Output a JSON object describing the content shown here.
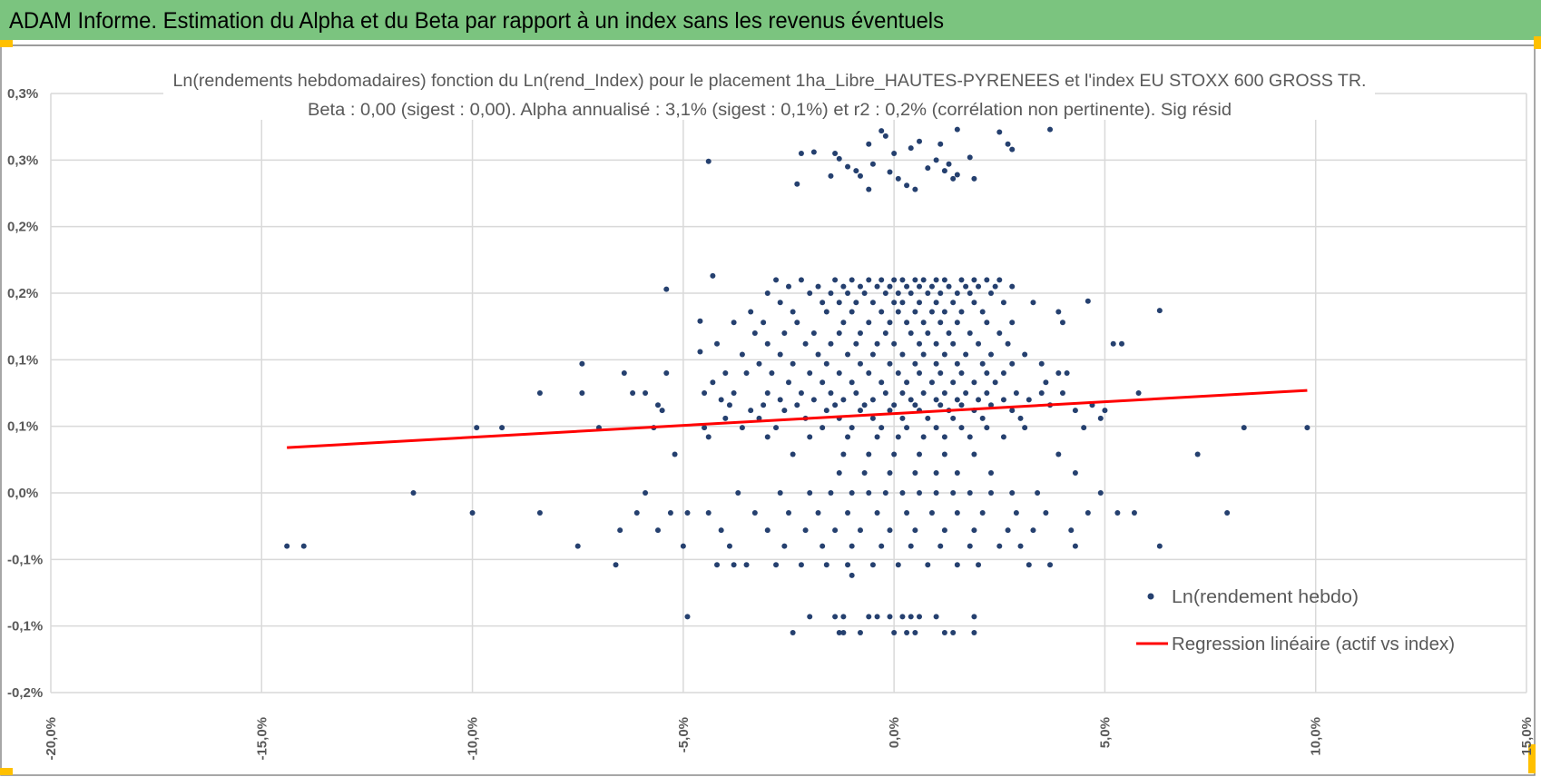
{
  "header": {
    "title": "ADAM Informe. Estimation du Alpha et du Beta par rapport à un index sans les revenus éventuels"
  },
  "colors": {
    "header_bg": "#7BC47F",
    "points": "#25406F",
    "regression": "#FF0000",
    "handle": "#FFC000"
  },
  "chart_data": {
    "type": "scatter",
    "title": "Ln(rendements hebdomadaires) fonction du Ln(rend_Index) pour le placement 1ha_Libre_HAUTES-PYRENEES et l'index EU STOXX 600 GROSS TR.",
    "subtitle": "Beta : 0,00 (sigest : 0,00). Alpha annualisé : 3,1% (sigest : 0,1%) et r2 : 0,2% (corrélation non pertinente). Sig résid",
    "xlabel": "",
    "ylabel": "",
    "xlim": [
      -20,
      15
    ],
    "ylim": [
      -0.15,
      0.3
    ],
    "grid": true,
    "legend_position": "bottom-right",
    "x_ticks": [
      {
        "v": -20,
        "label": "-20,0%"
      },
      {
        "v": -15,
        "label": "-15,0%"
      },
      {
        "v": -10,
        "label": "-10,0%"
      },
      {
        "v": -5,
        "label": "-5,0%"
      },
      {
        "v": 0,
        "label": "0,0%"
      },
      {
        "v": 5,
        "label": "5,0%"
      },
      {
        "v": 10,
        "label": "10,0%"
      },
      {
        "v": 15,
        "label": "15,0%"
      }
    ],
    "y_ticks": [
      {
        "v": 0.3,
        "label": "0,3%"
      },
      {
        "v": 0.25,
        "label": "0,3%"
      },
      {
        "v": 0.2,
        "label": "0,2%"
      },
      {
        "v": 0.15,
        "label": "0,2%"
      },
      {
        "v": 0.1,
        "label": "0,1%"
      },
      {
        "v": 0.05,
        "label": "0,1%"
      },
      {
        "v": 0.0,
        "label": "0,0%"
      },
      {
        "v": -0.05,
        "label": "-0,1%"
      },
      {
        "v": -0.1,
        "label": "-0,1%"
      },
      {
        "v": -0.15,
        "label": "-0,2%"
      }
    ],
    "series": [
      {
        "name": "Ln(rendement hebdo)",
        "kind": "scatter",
        "points": [
          [
            -2.3,
            0.232
          ],
          [
            -2.2,
            0.255
          ],
          [
            -1.9,
            0.256
          ],
          [
            -1.5,
            0.238
          ],
          [
            -1.4,
            0.255
          ],
          [
            -1.3,
            0.251
          ],
          [
            -1.1,
            0.245
          ],
          [
            -0.9,
            0.242
          ],
          [
            -0.8,
            0.238
          ],
          [
            -0.6,
            0.262
          ],
          [
            -0.5,
            0.247
          ],
          [
            -0.3,
            0.272
          ],
          [
            -0.2,
            0.268
          ],
          [
            -0.1,
            0.241
          ],
          [
            0.0,
            0.255
          ],
          [
            0.1,
            0.236
          ],
          [
            0.3,
            0.231
          ],
          [
            0.4,
            0.259
          ],
          [
            0.5,
            0.228
          ],
          [
            0.6,
            0.264
          ],
          [
            0.8,
            0.244
          ],
          [
            1.0,
            0.25
          ],
          [
            1.1,
            0.262
          ],
          [
            1.2,
            0.242
          ],
          [
            1.3,
            0.247
          ],
          [
            1.4,
            0.236
          ],
          [
            1.5,
            0.239
          ],
          [
            1.8,
            0.252
          ],
          [
            1.9,
            0.236
          ],
          [
            2.5,
            0.271
          ],
          [
            2.7,
            0.262
          ],
          [
            2.8,
            0.258
          ],
          [
            3.7,
            0.273
          ],
          [
            -4.4,
            0.249
          ],
          [
            1.5,
            0.273
          ],
          [
            -0.6,
            0.228
          ],
          [
            -5.4,
            0.153
          ],
          [
            -4.3,
            0.163
          ],
          [
            -4.6,
            0.129
          ],
          [
            -4.6,
            0.106
          ],
          [
            6.3,
            0.137
          ],
          [
            4.6,
            0.144
          ],
          [
            -1.0,
            -0.062
          ]
        ],
        "levels": [
          {
            "y": 0.16,
            "x": [
              -2.8,
              -2.2,
              -1.4,
              -1.0,
              -0.6,
              -0.3,
              0.0,
              0.2,
              0.5,
              0.7,
              1.0,
              1.2,
              1.6,
              1.9,
              2.2,
              2.5
            ]
          },
          {
            "y": 0.155,
            "x": [
              -2.5,
              -1.8,
              -1.2,
              -0.8,
              -0.4,
              -0.1,
              0.3,
              0.6,
              0.9,
              1.3,
              1.7,
              2.0,
              2.4,
              2.8
            ]
          },
          {
            "y": 0.15,
            "x": [
              -3.0,
              -2.0,
              -1.5,
              -1.1,
              -0.7,
              -0.2,
              0.1,
              0.4,
              0.8,
              1.1,
              1.5,
              1.8,
              2.3
            ]
          },
          {
            "y": 0.143,
            "x": [
              -2.7,
              -1.7,
              -1.3,
              -0.9,
              -0.5,
              0.0,
              0.2,
              0.6,
              1.0,
              1.4,
              1.9,
              2.6,
              3.3
            ]
          },
          {
            "y": 0.136,
            "x": [
              -3.4,
              -2.4,
              -1.6,
              -1.0,
              -0.3,
              0.1,
              0.5,
              0.9,
              1.2,
              1.6,
              2.1,
              3.9
            ]
          },
          {
            "y": 0.128,
            "x": [
              -3.8,
              -3.1,
              -2.3,
              -1.2,
              -0.6,
              -0.1,
              0.3,
              0.7,
              1.1,
              1.5,
              2.2,
              2.8,
              4.0
            ]
          },
          {
            "y": 0.12,
            "x": [
              -3.3,
              -2.6,
              -1.9,
              -1.3,
              -0.8,
              -0.2,
              0.4,
              0.8,
              1.3,
              1.8,
              2.5
            ]
          },
          {
            "y": 0.112,
            "x": [
              -4.2,
              -3.0,
              -2.1,
              -1.5,
              -0.9,
              -0.4,
              0.0,
              0.6,
              1.0,
              1.4,
              2.0,
              2.7,
              5.2,
              5.4
            ]
          },
          {
            "y": 0.104,
            "x": [
              -3.6,
              -2.7,
              -1.8,
              -1.1,
              -0.5,
              0.2,
              0.7,
              1.2,
              1.7,
              2.3,
              3.1
            ]
          },
          {
            "y": 0.097,
            "x": [
              -7.4,
              -3.2,
              -2.4,
              -1.6,
              -0.8,
              -0.1,
              0.5,
              1.0,
              1.5,
              2.1,
              2.8,
              3.5
            ]
          },
          {
            "y": 0.09,
            "x": [
              -6.4,
              -5.4,
              -4.0,
              -3.5,
              -2.9,
              -2.0,
              -1.3,
              -0.6,
              0.1,
              0.6,
              1.1,
              1.6,
              2.2,
              2.6,
              3.9,
              4.1
            ]
          },
          {
            "y": 0.083,
            "x": [
              -4.3,
              -2.5,
              -1.7,
              -1.0,
              -0.3,
              0.3,
              0.9,
              1.4,
              1.9,
              2.4,
              3.6
            ]
          },
          {
            "y": 0.075,
            "x": [
              -8.4,
              -7.4,
              -6.2,
              -5.9,
              -4.5,
              -3.8,
              -3.0,
              -2.2,
              -1.5,
              -0.9,
              -0.2,
              0.2,
              0.7,
              1.2,
              1.7,
              2.2,
              2.9,
              3.5,
              4.0,
              5.8
            ]
          },
          {
            "y": 0.07,
            "x": [
              -4.1,
              -2.7,
              -1.9,
              -1.2,
              -0.5,
              0.4,
              1.0,
              1.5,
              2.0,
              2.6,
              3.2
            ]
          },
          {
            "y": 0.066,
            "x": [
              -5.6,
              -3.9,
              -3.1,
              -2.3,
              -1.4,
              -0.7,
              0.0,
              0.5,
              1.1,
              1.6,
              2.3,
              3.7,
              4.7
            ]
          },
          {
            "y": 0.062,
            "x": [
              -5.5,
              -3.4,
              -2.6,
              -1.6,
              -0.8,
              -0.1,
              0.6,
              1.3,
              1.9,
              2.8,
              4.3,
              5.0
            ]
          },
          {
            "y": 0.056,
            "x": [
              -4.0,
              -3.2,
              -2.1,
              -1.3,
              -0.5,
              0.2,
              0.8,
              1.4,
              2.1,
              3.0,
              4.9
            ]
          },
          {
            "y": 0.049,
            "x": [
              -9.9,
              -9.3,
              -7.0,
              -5.7,
              -4.5,
              -3.6,
              -2.8,
              -1.7,
              -1.0,
              -0.3,
              0.3,
              1.0,
              1.6,
              2.2,
              3.1,
              4.5,
              8.3,
              9.8
            ]
          },
          {
            "y": 0.042,
            "x": [
              -4.4,
              -3.0,
              -2.0,
              -1.1,
              -0.4,
              0.1,
              0.7,
              1.2,
              1.8,
              2.6
            ]
          },
          {
            "y": 0.029,
            "x": [
              -5.2,
              -2.4,
              -1.2,
              -0.6,
              0.0,
              0.6,
              1.2,
              1.9,
              3.9,
              7.2
            ]
          },
          {
            "y": 0.015,
            "x": [
              -1.3,
              -0.7,
              -0.1,
              0.5,
              1.0,
              1.5,
              2.3,
              4.3
            ]
          },
          {
            "y": 0.0,
            "x": [
              -11.4,
              -5.9,
              -3.7,
              -2.7,
              -2.0,
              -1.5,
              -1.0,
              -0.6,
              -0.2,
              0.2,
              0.6,
              1.0,
              1.4,
              1.8,
              2.3,
              2.8,
              3.4,
              4.9
            ]
          },
          {
            "y": -0.015,
            "x": [
              -10.0,
              -8.4,
              -6.1,
              -5.3,
              -4.9,
              -4.4,
              -3.3,
              -2.5,
              -1.8,
              -1.1,
              -0.4,
              0.3,
              0.9,
              1.5,
              2.1,
              2.9,
              3.6,
              4.6,
              5.3,
              5.7,
              7.9
            ]
          },
          {
            "y": -0.028,
            "x": [
              -6.5,
              -5.6,
              -4.1,
              -3.0,
              -2.1,
              -1.4,
              -0.8,
              -0.1,
              0.5,
              1.2,
              1.9,
              2.7,
              3.3,
              4.2
            ]
          },
          {
            "y": -0.04,
            "x": [
              -14.4,
              -14.0,
              -7.5,
              -5.0,
              -3.9,
              -2.6,
              -1.7,
              -1.0,
              -0.3,
              0.4,
              1.1,
              1.8,
              2.5,
              3.0,
              4.3,
              6.3
            ]
          },
          {
            "y": -0.054,
            "x": [
              -6.6,
              -4.2,
              -3.8,
              -3.5,
              -2.8,
              -2.2,
              -1.6,
              -1.1,
              -0.5,
              0.1,
              0.8,
              1.5,
              2.0,
              3.2,
              3.7
            ]
          },
          {
            "y": -0.093,
            "x": [
              -4.9,
              -2.0,
              -1.4,
              -1.2,
              -0.6,
              -0.4,
              -0.1,
              0.2,
              0.4,
              0.6,
              1.0,
              1.9
            ]
          },
          {
            "y": -0.105,
            "x": [
              -2.4,
              -1.3,
              -1.2,
              -0.8,
              0.0,
              0.3,
              0.5,
              1.2,
              1.4,
              1.9
            ]
          }
        ]
      },
      {
        "name": "Regression linéaire (actif vs index)",
        "kind": "line",
        "points": [
          [
            -14.4,
            0.034
          ],
          [
            9.8,
            0.077
          ]
        ]
      }
    ]
  }
}
